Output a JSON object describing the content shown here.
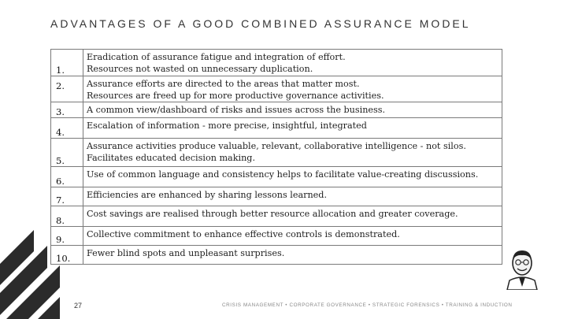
{
  "title": "ADVANTAGES OF A GOOD COMBINED ASSURANCE MODEL",
  "rows": [
    {
      "number": "1.",
      "lines": [
        "Eradication of assurance fatigue and integration of effort.",
        "Resources not wasted on unnecessary duplication."
      ]
    },
    {
      "number": "2.",
      "lines": [
        "Assurance efforts are directed to the areas that matter most.",
        "Resources are freed up for more productive governance activities."
      ]
    },
    {
      "number": "3.",
      "lines": [
        "A common view/dashboard of risks and issues across the business."
      ]
    },
    {
      "number": "4.",
      "lines": [
        "Escalation of information - more precise, insightful, integrated"
      ]
    },
    {
      "number": "5.",
      "lines": [
        "Assurance activities produce valuable, relevant, collaborative intelligence - not silos.",
        "Facilitates educated decision making."
      ]
    },
    {
      "number": "6.",
      "lines": [
        "Use of common language and consistency helps to facilitate value-creating discussions."
      ]
    },
    {
      "number": "7.",
      "lines": [
        "Efficiencies are enhanced by sharing lessons learned."
      ]
    },
    {
      "number": "8.",
      "lines": [
        "Cost savings are realised through better resource allocation and greater coverage."
      ]
    },
    {
      "number": "9.",
      "lines": [
        "Collective commitment to enhance effective controls is demonstrated."
      ]
    },
    {
      "number": "10.",
      "lines": [
        "Fewer blind spots and unpleasant surprises."
      ]
    }
  ],
  "page_number": "27",
  "footer": "CRISIS MANAGEMENT • CORPORATE GOVERNANCE • STRATEGIC FORENSICS • TRAINING & INDUCTION",
  "colors": {
    "stripes": "#2b2b2b",
    "border": "#7a7a7a",
    "footer_text": "#888888"
  },
  "icons": [
    "diagonal-stripes-decoration",
    "presenter-avatar"
  ]
}
